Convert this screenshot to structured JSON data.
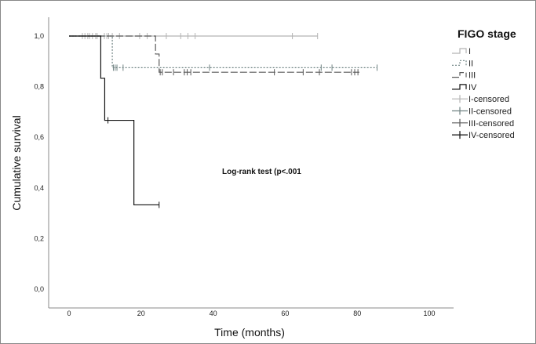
{
  "chart_data": {
    "type": "line",
    "subtype": "kaplan-meier",
    "xlabel": "Time (months)",
    "ylabel": "Cumulative survival",
    "xlim": [
      0,
      100
    ],
    "ylim": [
      0,
      1
    ],
    "xticks": [
      "0",
      "20",
      "40",
      "60",
      "80",
      "100"
    ],
    "xtick_values": [
      0,
      20,
      40,
      60,
      80,
      100
    ],
    "yticks": [
      "0,0",
      "0,2",
      "0,4",
      "0,6",
      "0,8",
      "1,0"
    ],
    "ytick_values": [
      0,
      0.2,
      0.4,
      0.6,
      0.8,
      1.0
    ],
    "annotation": "Log-rank test (p<.001",
    "legend": {
      "title": "FIGO stage",
      "placement": "right",
      "entries": [
        "I",
        "II",
        "III",
        "IV",
        "I-censored",
        "II-censored",
        "III-censored",
        "IV-censored"
      ]
    },
    "series": [
      {
        "name": "I",
        "color": "#b4b4b4",
        "dash": "",
        "steps": [
          [
            0,
            1.0
          ]
        ],
        "end": 69,
        "censored": [
          3.7,
          4.4,
          5.2,
          5.7,
          6.5,
          7.4,
          7.8,
          9.8,
          10.5,
          11,
          12,
          14,
          19.6,
          21.7,
          27,
          31,
          33,
          35,
          62,
          69
        ]
      },
      {
        "name": "II",
        "color": "#6f8282",
        "dash": "2,2",
        "steps": [
          [
            0,
            1.0
          ],
          [
            12,
            0.875
          ]
        ],
        "end": 85.5,
        "censored": [
          12.3,
          12.8,
          13.3,
          15,
          39,
          70,
          73,
          85.5
        ]
      },
      {
        "name": "III",
        "color": "#5a5a5a",
        "dash": "9,3",
        "steps": [
          [
            0,
            1.0
          ],
          [
            24,
            0.929
          ],
          [
            25,
            0.857
          ]
        ],
        "end": 80.6,
        "censored": [
          25.3,
          25.9,
          29,
          32,
          32.8,
          33.8,
          57,
          65,
          69.5,
          78.4,
          79.3,
          80.2
        ]
      },
      {
        "name": "IV",
        "color": "#111111",
        "dash": "",
        "steps": [
          [
            0,
            1.0
          ],
          [
            8.8,
            0.833
          ],
          [
            9.9,
            0.667
          ],
          [
            18,
            0.333
          ]
        ],
        "end": 25,
        "censored": [
          10.8,
          25
        ]
      }
    ]
  }
}
